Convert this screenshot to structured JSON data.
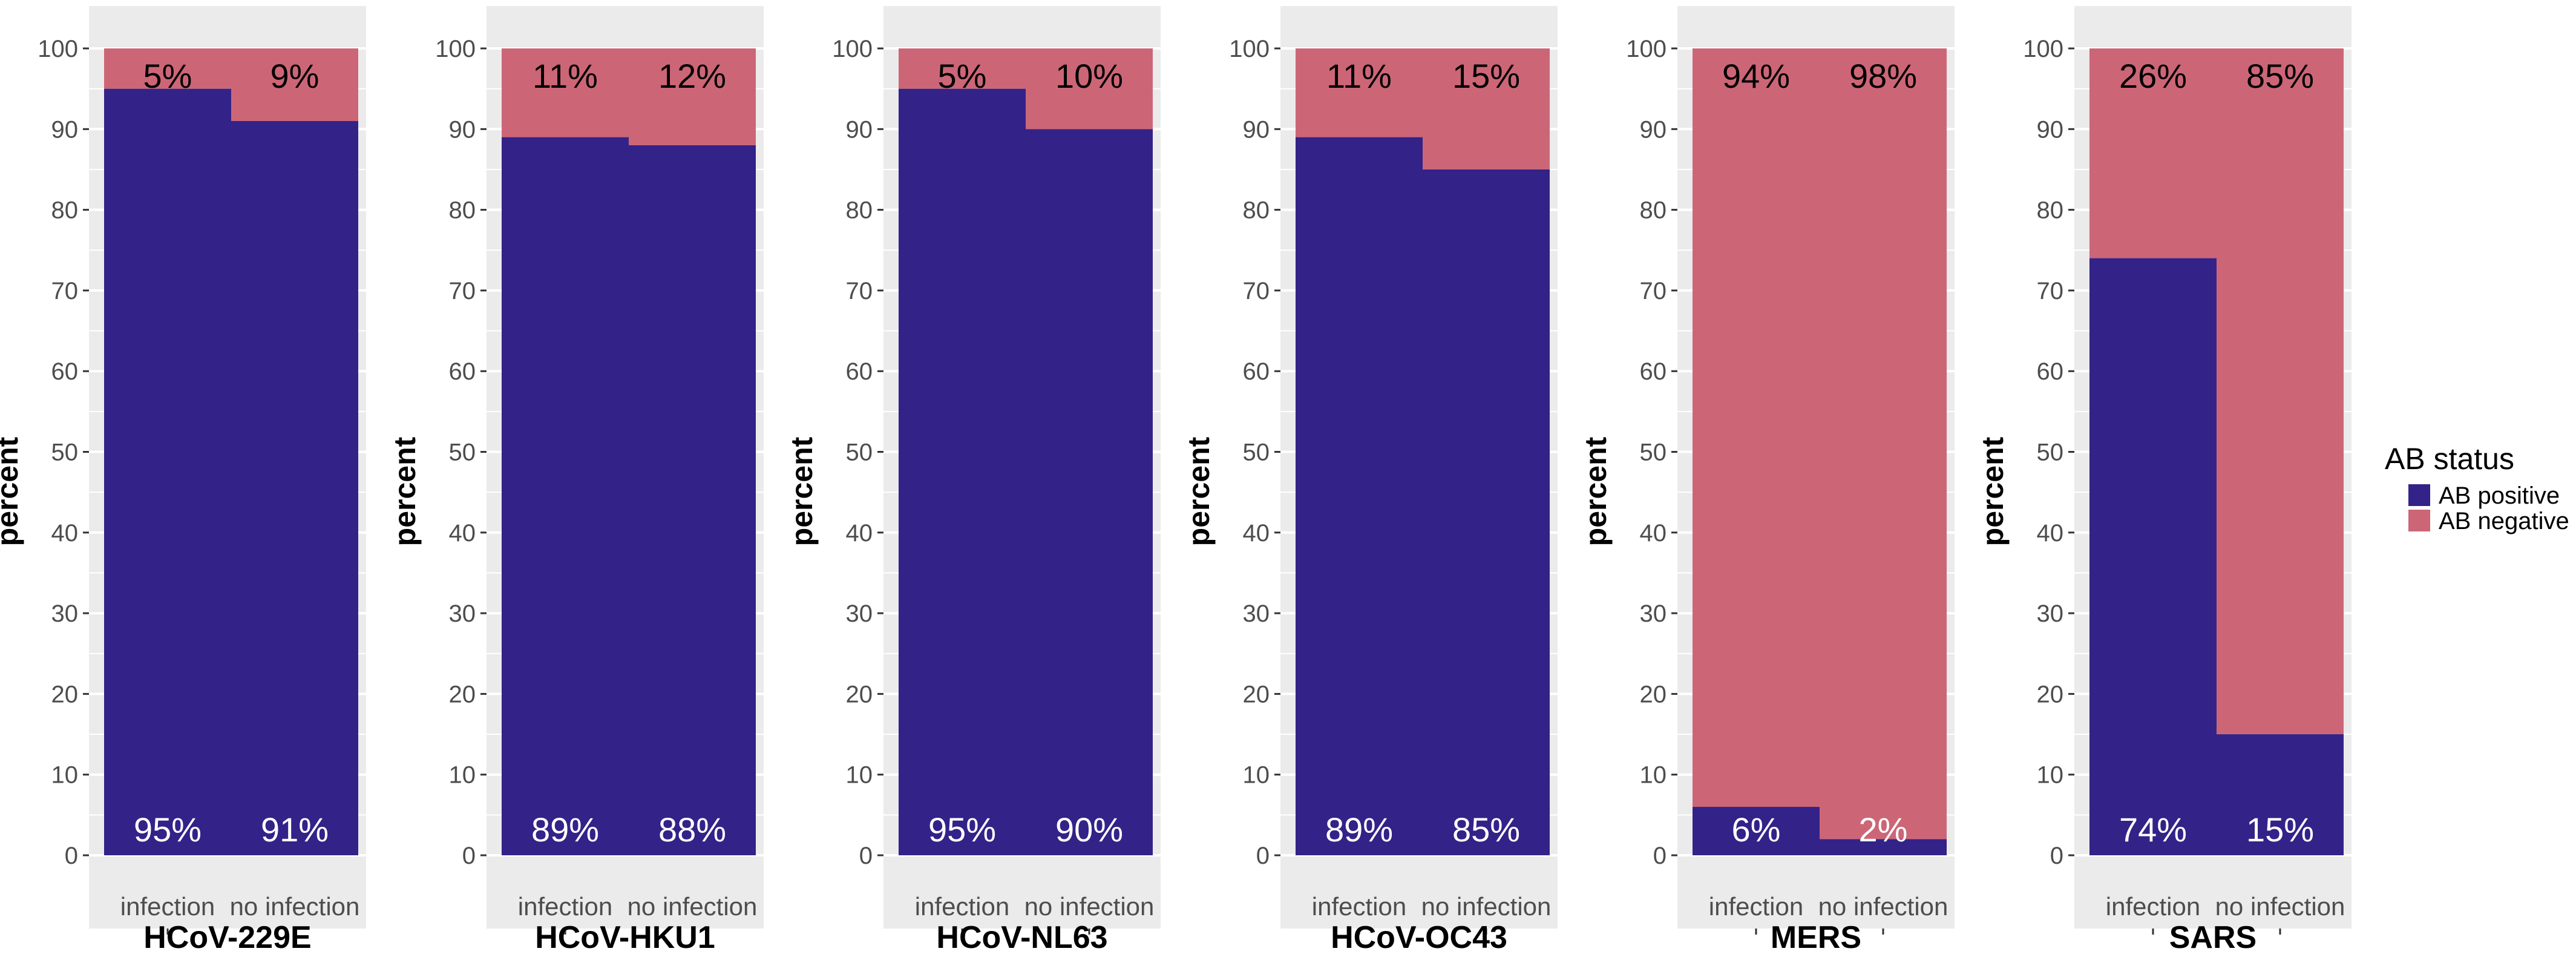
{
  "chart_data": {
    "type": "bar",
    "stacked": true,
    "ylabel": "percent",
    "ylim": [
      0,
      100
    ],
    "yticks": [
      0,
      10,
      20,
      30,
      40,
      50,
      60,
      70,
      80,
      90,
      100
    ],
    "categories": [
      "infection",
      "no infection"
    ],
    "legend": {
      "title": "AB status",
      "position": "right",
      "entries": [
        {
          "name": "AB positive",
          "color": "#332288"
        },
        {
          "name": "AB negative",
          "color": "#CC6677"
        }
      ]
    },
    "grid": true,
    "colors": {
      "panel_background": "#EBEBEB",
      "grid": "#FFFFFF"
    },
    "panels": [
      {
        "title": "HCoV-229E",
        "positive": [
          95,
          91
        ],
        "negative": [
          5,
          9
        ],
        "labels_positive": [
          "95%",
          "91%"
        ],
        "labels_negative": [
          "5%",
          "9%"
        ]
      },
      {
        "title": "HCoV-HKU1",
        "positive": [
          89,
          88
        ],
        "negative": [
          11,
          12
        ],
        "labels_positive": [
          "89%",
          "88%"
        ],
        "labels_negative": [
          "11%",
          "12%"
        ]
      },
      {
        "title": "HCoV-NL63",
        "positive": [
          95,
          90
        ],
        "negative": [
          5,
          10
        ],
        "labels_positive": [
          "95%",
          "90%"
        ],
        "labels_negative": [
          "5%",
          "10%"
        ]
      },
      {
        "title": "HCoV-OC43",
        "positive": [
          89,
          85
        ],
        "negative": [
          11,
          15
        ],
        "labels_positive": [
          "89%",
          "85%"
        ],
        "labels_negative": [
          "11%",
          "15%"
        ]
      },
      {
        "title": "MERS",
        "positive": [
          6,
          2
        ],
        "negative": [
          94,
          98
        ],
        "labels_positive": [
          "6%",
          "2%"
        ],
        "labels_negative": [
          "94%",
          "98%"
        ]
      },
      {
        "title": "SARS",
        "positive": [
          74,
          15
        ],
        "negative": [
          26,
          85
        ],
        "labels_positive": [
          "74%",
          "15%"
        ],
        "labels_negative": [
          "26%",
          "85%"
        ]
      }
    ]
  }
}
